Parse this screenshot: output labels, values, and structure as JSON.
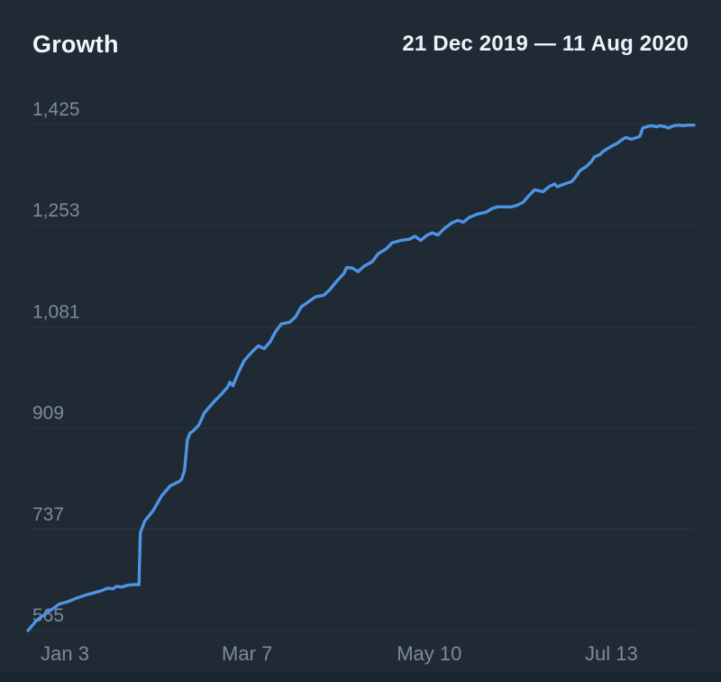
{
  "header": {
    "title": "Growth",
    "date_range": "21 Dec 2019 — 11 Aug 2020"
  },
  "chart_data": {
    "type": "line",
    "title": "Growth",
    "subtitle": "21 Dec 2019 — 11 Aug 2020",
    "x_start_date": "21 Dec 2019",
    "x_end_date": "11 Aug 2020",
    "x_range_days": [
      0,
      234
    ],
    "ylim": [
      565,
      1425
    ],
    "y_ticks": [
      565,
      737,
      909,
      1081,
      1253,
      1425
    ],
    "y_tick_labels": [
      "565",
      "737",
      "909",
      "1,081",
      "1,253",
      "1,425"
    ],
    "x_ticks": [
      {
        "label": "Jan 3",
        "day": 13
      },
      {
        "label": "Mar 7",
        "day": 77
      },
      {
        "label": "May 10",
        "day": 141
      },
      {
        "label": "Jul 13",
        "day": 205
      }
    ],
    "grid": true,
    "legend_position": "none",
    "series": [
      {
        "name": "Growth",
        "points": [
          [
            0,
            565
          ],
          [
            3,
            582
          ],
          [
            6,
            593
          ],
          [
            9,
            603
          ],
          [
            11,
            610
          ],
          [
            14,
            614
          ],
          [
            17,
            620
          ],
          [
            20,
            625
          ],
          [
            23,
            629
          ],
          [
            26,
            633
          ],
          [
            28,
            637
          ],
          [
            30,
            636
          ],
          [
            31,
            640
          ],
          [
            33,
            639
          ],
          [
            35,
            642
          ],
          [
            37,
            643
          ],
          [
            39,
            643
          ],
          [
            39.5,
            731
          ],
          [
            41,
            751
          ],
          [
            44,
            769
          ],
          [
            47,
            794
          ],
          [
            50,
            811
          ],
          [
            53,
            818
          ],
          [
            54,
            822
          ],
          [
            55,
            837
          ],
          [
            55.5,
            863
          ],
          [
            56,
            889
          ],
          [
            57,
            901
          ],
          [
            58,
            904
          ],
          [
            60,
            914
          ],
          [
            62,
            935
          ],
          [
            65,
            952
          ],
          [
            68,
            967
          ],
          [
            70,
            978
          ],
          [
            71,
            987
          ],
          [
            72,
            981
          ],
          [
            74,
            1004
          ],
          [
            76,
            1024
          ],
          [
            79,
            1040
          ],
          [
            81,
            1049
          ],
          [
            83,
            1044
          ],
          [
            85,
            1055
          ],
          [
            87,
            1073
          ],
          [
            89,
            1086
          ],
          [
            92,
            1089
          ],
          [
            94,
            1098
          ],
          [
            96,
            1115
          ],
          [
            98,
            1122
          ],
          [
            101,
            1132
          ],
          [
            104,
            1135
          ],
          [
            106,
            1144
          ],
          [
            108,
            1156
          ],
          [
            111,
            1172
          ],
          [
            112,
            1182
          ],
          [
            114,
            1181
          ],
          [
            116,
            1175
          ],
          [
            118,
            1184
          ],
          [
            121,
            1192
          ],
          [
            123,
            1205
          ],
          [
            126,
            1214
          ],
          [
            128,
            1224
          ],
          [
            131,
            1228
          ],
          [
            134,
            1230
          ],
          [
            136,
            1235
          ],
          [
            138,
            1228
          ],
          [
            140,
            1236
          ],
          [
            142,
            1241
          ],
          [
            144,
            1237
          ],
          [
            146,
            1247
          ],
          [
            149,
            1258
          ],
          [
            151,
            1262
          ],
          [
            153,
            1259
          ],
          [
            155,
            1267
          ],
          [
            158,
            1273
          ],
          [
            161,
            1276
          ],
          [
            163,
            1282
          ],
          [
            165,
            1285
          ],
          [
            168,
            1285
          ],
          [
            170,
            1285
          ],
          [
            172,
            1288
          ],
          [
            174,
            1293
          ],
          [
            176,
            1304
          ],
          [
            178,
            1314
          ],
          [
            179,
            1313
          ],
          [
            181,
            1311
          ],
          [
            183,
            1319
          ],
          [
            185,
            1324
          ],
          [
            186,
            1319
          ],
          [
            188,
            1323
          ],
          [
            191,
            1328
          ],
          [
            192,
            1333
          ],
          [
            194,
            1347
          ],
          [
            196,
            1353
          ],
          [
            198,
            1362
          ],
          [
            199,
            1370
          ],
          [
            201,
            1374
          ],
          [
            202,
            1379
          ],
          [
            204,
            1385
          ],
          [
            205,
            1388
          ],
          [
            207,
            1393
          ],
          [
            209,
            1400
          ],
          [
            210,
            1403
          ],
          [
            212,
            1400
          ],
          [
            214,
            1403
          ],
          [
            215,
            1405
          ],
          [
            216,
            1419
          ],
          [
            218,
            1422
          ],
          [
            219,
            1423
          ],
          [
            221,
            1421
          ],
          [
            222,
            1423
          ],
          [
            224,
            1421
          ],
          [
            225,
            1419
          ],
          [
            227,
            1423
          ],
          [
            229,
            1424
          ],
          [
            230,
            1423
          ],
          [
            232,
            1424
          ],
          [
            234,
            1424
          ]
        ]
      }
    ],
    "colors": {
      "background": "#1f2a35",
      "line": "#4e94e4",
      "grid": "#2b3743",
      "axis_label": "#7e8a97",
      "title": "#f2f6fa",
      "footer_band": "#1a2531"
    }
  }
}
